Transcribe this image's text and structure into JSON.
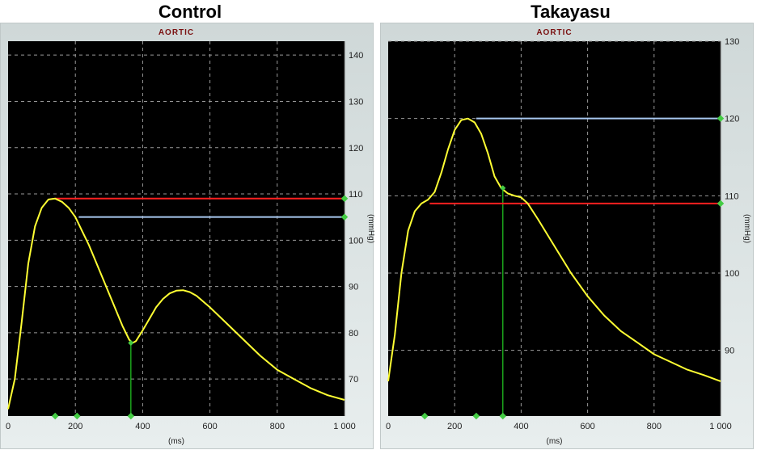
{
  "headings": [
    "Control",
    "Takayasu"
  ],
  "chart_data": [
    {
      "type": "line",
      "title": "AORTIC",
      "xlabel": "(ms)",
      "ylabel": "(mmHg)",
      "xlim": [
        0,
        1000
      ],
      "ylim": [
        62,
        143
      ],
      "x_ticks": [
        0,
        200,
        400,
        600,
        800,
        1000
      ],
      "x_tick_labels": [
        "0",
        "200",
        "400",
        "600",
        "800",
        "1 000"
      ],
      "y_ticks": [
        70,
        80,
        90,
        100,
        110,
        120,
        130,
        140
      ],
      "grid": true,
      "background": "#000000",
      "series": [
        {
          "color": "#ffff33",
          "x": [
            0,
            20,
            40,
            60,
            80,
            100,
            120,
            140,
            160,
            180,
            200,
            220,
            240,
            260,
            280,
            300,
            320,
            340,
            360,
            370,
            380,
            400,
            420,
            440,
            460,
            480,
            500,
            520,
            540,
            560,
            600,
            650,
            700,
            750,
            800,
            850,
            900,
            950,
            1000
          ],
          "y": [
            63.5,
            70,
            82,
            95,
            103,
            107,
            108.8,
            109,
            108.3,
            107,
            105,
            102,
            99,
            95.5,
            92,
            88.5,
            85,
            81.5,
            78.5,
            77.8,
            78.2,
            80.5,
            83,
            85.5,
            87.3,
            88.5,
            89.1,
            89.2,
            88.8,
            88,
            85.5,
            82,
            78.5,
            75,
            72,
            70,
            68,
            66.5,
            65.5
          ]
        }
      ],
      "reference_lines": [
        {
          "color": "#ff2020",
          "y": 109,
          "x_from": 140,
          "x_to": 1000
        },
        {
          "color": "#a8c8f0",
          "y": 105,
          "x_from": 210,
          "x_to": 1000
        }
      ],
      "markers": [
        {
          "color": "#22cc22",
          "x": 365,
          "y_from": 62,
          "y_to": 77.8
        }
      ],
      "axis_points": [
        140,
        205,
        365
      ]
    },
    {
      "type": "line",
      "title": "AORTIC",
      "xlabel": "(ms)",
      "ylabel": "(mmHg)",
      "xlim": [
        0,
        1000
      ],
      "ylim": [
        81.5,
        130
      ],
      "x_ticks": [
        0,
        200,
        400,
        600,
        800,
        1000
      ],
      "x_tick_labels": [
        "0",
        "200",
        "400",
        "600",
        "800",
        "1 000"
      ],
      "y_ticks": [
        90,
        100,
        110,
        120,
        130
      ],
      "grid": true,
      "background": "#000000",
      "series": [
        {
          "color": "#ffff33",
          "x": [
            0,
            20,
            40,
            60,
            80,
            100,
            120,
            140,
            160,
            180,
            200,
            220,
            240,
            260,
            280,
            300,
            320,
            340,
            360,
            380,
            400,
            420,
            450,
            500,
            550,
            600,
            650,
            700,
            750,
            800,
            850,
            900,
            950,
            1000
          ],
          "y": [
            86,
            92,
            100,
            105.5,
            108,
            109,
            109.5,
            110.5,
            113,
            116,
            118.5,
            119.8,
            120,
            119.5,
            118,
            115.5,
            112.5,
            111,
            110.3,
            110,
            109.8,
            109,
            107,
            103.5,
            100,
            97,
            94.5,
            92.5,
            91,
            89.5,
            88.5,
            87.5,
            86.8,
            86
          ]
        }
      ],
      "reference_lines": [
        {
          "color": "#ff2020",
          "y": 109,
          "x_from": 125,
          "x_to": 1000
        },
        {
          "color": "#a8c8f0",
          "y": 120,
          "x_from": 265,
          "x_to": 1000
        }
      ],
      "markers": [
        {
          "color": "#22cc22",
          "x": 345,
          "y_from": 81.5,
          "y_to": 111
        }
      ],
      "axis_points": [
        110,
        265,
        345
      ]
    }
  ]
}
